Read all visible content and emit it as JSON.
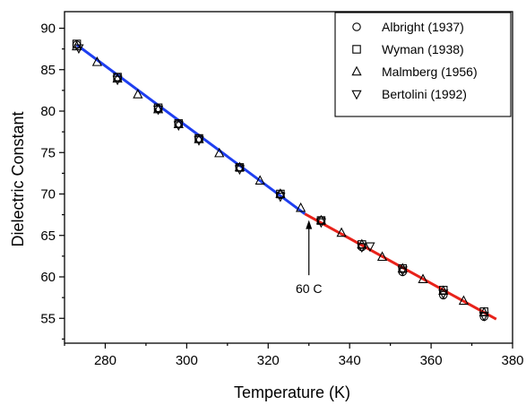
{
  "chart_data": {
    "type": "scatter",
    "xlabel": "Temperature (K)",
    "ylabel": "Dielectric Constant",
    "xlim": [
      270,
      380
    ],
    "ylim": [
      52,
      92
    ],
    "xticks": [
      280,
      300,
      320,
      340,
      360,
      380
    ],
    "yticks": [
      55,
      60,
      65,
      70,
      75,
      80,
      85,
      90
    ],
    "grid": false,
    "legend_position": "top-right",
    "series": [
      {
        "name": "Albright (1937)",
        "marker": "circle",
        "x": [
          273,
          283,
          293,
          298,
          303,
          313,
          323,
          333,
          343,
          353,
          363,
          373
        ],
        "y": [
          88.0,
          84.1,
          80.3,
          78.5,
          76.7,
          73.2,
          69.9,
          66.8,
          63.6,
          60.6,
          57.8,
          55.2
        ]
      },
      {
        "name": "Wyman (1938)",
        "marker": "square",
        "x": [
          273,
          283,
          293,
          298,
          303,
          313,
          323,
          333,
          343,
          353,
          363,
          373
        ],
        "y": [
          88.1,
          84.1,
          80.4,
          78.5,
          76.7,
          73.2,
          70.0,
          66.8,
          63.9,
          61.0,
          58.4,
          55.8
        ]
      },
      {
        "name": "Malmberg (1956)",
        "marker": "triangle-up",
        "x": [
          273,
          278,
          283,
          288,
          293,
          298,
          303,
          308,
          313,
          318,
          323,
          328,
          333,
          338,
          343,
          348,
          353,
          358,
          363,
          368,
          373
        ],
        "y": [
          87.8,
          85.9,
          83.9,
          82.0,
          80.2,
          78.4,
          76.6,
          74.9,
          73.2,
          71.6,
          70.0,
          68.3,
          66.8,
          65.3,
          63.9,
          62.4,
          61.0,
          59.7,
          58.3,
          57.1,
          55.7
        ]
      },
      {
        "name": "Bertolini (1992)",
        "marker": "triangle-down",
        "x": [
          273.5,
          283,
          293,
          298,
          303,
          313,
          323,
          333,
          343,
          345,
          353,
          363,
          373
        ],
        "y": [
          87.6,
          83.8,
          80.2,
          78.3,
          76.5,
          73.0,
          69.7,
          66.6,
          63.6,
          63.7,
          60.8,
          58.0,
          55.3
        ]
      }
    ],
    "fit_lines": [
      {
        "color": "#1f3ff0",
        "x": [
          273,
          329
        ],
        "y": [
          88.0,
          67.6
        ]
      },
      {
        "color": "#e8221a",
        "x": [
          329,
          376
        ],
        "y": [
          67.6,
          54.9
        ]
      }
    ],
    "annotation": {
      "text": "60 C",
      "x": 330,
      "y_tip": 67.5,
      "y_tail": 60.2
    }
  }
}
